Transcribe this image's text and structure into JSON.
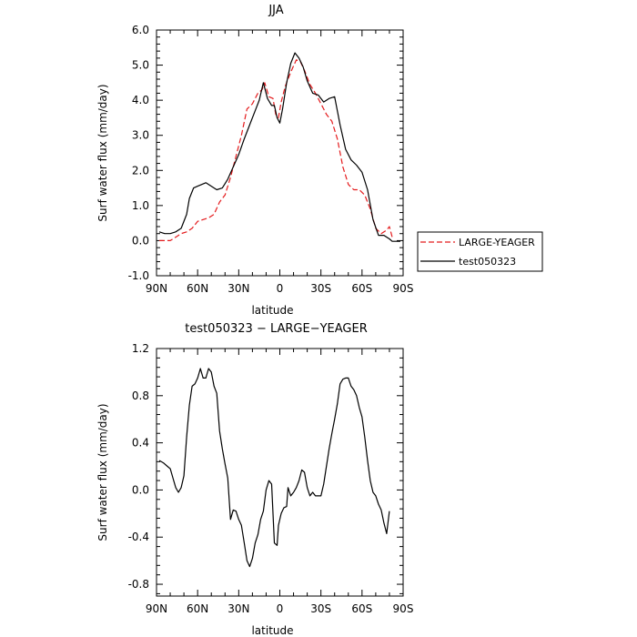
{
  "chart_data": [
    {
      "type": "line",
      "title": "JJA",
      "xlabel": "latitude",
      "ylabel": "Surf water flux (mm/day)",
      "xlim": [
        90,
        -90
      ],
      "ylim": [
        -1.0,
        6.0
      ],
      "xticks": [
        90,
        60,
        30,
        0,
        -30,
        -60,
        -90
      ],
      "xtick_labels": [
        "90N",
        "60N",
        "30N",
        "0",
        "30S",
        "60S",
        "90S"
      ],
      "yticks": [
        -1.0,
        0.0,
        1.0,
        2.0,
        3.0,
        4.0,
        5.0,
        6.0
      ],
      "ytick_labels": [
        "-1.0",
        "0.0",
        "1.0",
        "2.0",
        "3.0",
        "4.0",
        "5.0",
        "6.0"
      ],
      "legend_position": "right-outside",
      "series": [
        {
          "name": "LARGE-YEAGER",
          "color": "#e41a1c",
          "dash": "dashed",
          "points": [
            [
              88,
              0.0
            ],
            [
              84,
              0.0
            ],
            [
              80,
              0.0
            ],
            [
              76,
              0.1
            ],
            [
              72,
              0.2
            ],
            [
              68,
              0.25
            ],
            [
              64,
              0.35
            ],
            [
              60,
              0.55
            ],
            [
              56,
              0.6
            ],
            [
              52,
              0.65
            ],
            [
              48,
              0.75
            ],
            [
              44,
              1.1
            ],
            [
              40,
              1.3
            ],
            [
              36,
              1.8
            ],
            [
              32,
              2.4
            ],
            [
              28,
              3.0
            ],
            [
              24,
              3.75
            ],
            [
              20,
              3.9
            ],
            [
              16,
              4.2
            ],
            [
              13,
              4.3
            ],
            [
              11,
              4.5
            ],
            [
              8,
              4.1
            ],
            [
              5,
              4.05
            ],
            [
              3,
              3.6
            ],
            [
              1,
              3.5
            ],
            [
              -1,
              3.95
            ],
            [
              -4,
              4.4
            ],
            [
              -8,
              4.8
            ],
            [
              -12,
              5.15
            ],
            [
              -15,
              5.1
            ],
            [
              -18,
              4.85
            ],
            [
              -22,
              4.45
            ],
            [
              -26,
              4.2
            ],
            [
              -30,
              3.9
            ],
            [
              -34,
              3.6
            ],
            [
              -38,
              3.4
            ],
            [
              -42,
              2.9
            ],
            [
              -46,
              2.1
            ],
            [
              -50,
              1.6
            ],
            [
              -54,
              1.45
            ],
            [
              -58,
              1.45
            ],
            [
              -62,
              1.3
            ],
            [
              -66,
              0.9
            ],
            [
              -70,
              0.35
            ],
            [
              -74,
              0.2
            ],
            [
              -78,
              0.3
            ],
            [
              -80,
              0.4
            ],
            [
              -82,
              0.1
            ]
          ]
        },
        {
          "name": "test050323",
          "color": "#000000",
          "dash": "solid",
          "points": [
            [
              88,
              0.25
            ],
            [
              84,
              0.2
            ],
            [
              80,
              0.2
            ],
            [
              76,
              0.25
            ],
            [
              72,
              0.35
            ],
            [
              68,
              0.75
            ],
            [
              66,
              1.2
            ],
            [
              63,
              1.5
            ],
            [
              60,
              1.55
            ],
            [
              57,
              1.6
            ],
            [
              54,
              1.65
            ],
            [
              50,
              1.55
            ],
            [
              46,
              1.45
            ],
            [
              42,
              1.5
            ],
            [
              38,
              1.75
            ],
            [
              34,
              2.1
            ],
            [
              30,
              2.45
            ],
            [
              26,
              2.9
            ],
            [
              22,
              3.3
            ],
            [
              18,
              3.7
            ],
            [
              15,
              4.0
            ],
            [
              12,
              4.5
            ],
            [
              9,
              4.05
            ],
            [
              6,
              3.85
            ],
            [
              4,
              3.85
            ],
            [
              2,
              3.5
            ],
            [
              0,
              3.35
            ],
            [
              -2,
              3.75
            ],
            [
              -5,
              4.5
            ],
            [
              -8,
              5.05
            ],
            [
              -11,
              5.35
            ],
            [
              -14,
              5.2
            ],
            [
              -17,
              4.95
            ],
            [
              -20,
              4.55
            ],
            [
              -24,
              4.2
            ],
            [
              -28,
              4.15
            ],
            [
              -32,
              3.95
            ],
            [
              -36,
              4.05
            ],
            [
              -40,
              4.1
            ],
            [
              -44,
              3.3
            ],
            [
              -48,
              2.6
            ],
            [
              -52,
              2.3
            ],
            [
              -56,
              2.15
            ],
            [
              -60,
              1.95
            ],
            [
              -64,
              1.45
            ],
            [
              -68,
              0.6
            ],
            [
              -72,
              0.15
            ],
            [
              -76,
              0.15
            ],
            [
              -80,
              0.05
            ],
            [
              -82,
              -0.02
            ],
            [
              -86,
              -0.02
            ],
            [
              -88,
              -0.02
            ]
          ]
        }
      ]
    },
    {
      "type": "line",
      "title": "test050323 − LARGE−YEAGER",
      "xlabel": "latitude",
      "ylabel": "Surf water flux (mm/day)",
      "xlim": [
        90,
        -90
      ],
      "ylim": [
        -0.9,
        1.2
      ],
      "xticks": [
        90,
        60,
        30,
        0,
        -30,
        -60,
        -90
      ],
      "xtick_labels": [
        "90N",
        "60N",
        "30N",
        "0",
        "30S",
        "60S",
        "90S"
      ],
      "yticks": [
        -0.8,
        -0.4,
        0.0,
        0.4,
        0.8,
        1.2
      ],
      "ytick_labels": [
        "-0.8",
        "-0.4",
        "0.0",
        "0.4",
        "0.8",
        "1.2"
      ],
      "series": [
        {
          "color": "#000000",
          "dash": "solid",
          "points": [
            [
              88,
              0.25
            ],
            [
              85,
              0.23
            ],
            [
              82,
              0.2
            ],
            [
              80,
              0.18
            ],
            [
              78,
              0.1
            ],
            [
              76,
              0.02
            ],
            [
              74,
              -0.02
            ],
            [
              72,
              0.02
            ],
            [
              70,
              0.12
            ],
            [
              68,
              0.45
            ],
            [
              66,
              0.72
            ],
            [
              64,
              0.88
            ],
            [
              62,
              0.9
            ],
            [
              60,
              0.95
            ],
            [
              58,
              1.03
            ],
            [
              56,
              0.95
            ],
            [
              54,
              0.95
            ],
            [
              52,
              1.03
            ],
            [
              50,
              1.0
            ],
            [
              48,
              0.88
            ],
            [
              46,
              0.82
            ],
            [
              44,
              0.5
            ],
            [
              42,
              0.35
            ],
            [
              40,
              0.22
            ],
            [
              38,
              0.1
            ],
            [
              36,
              -0.25
            ],
            [
              34,
              -0.17
            ],
            [
              32,
              -0.18
            ],
            [
              30,
              -0.25
            ],
            [
              28,
              -0.3
            ],
            [
              26,
              -0.45
            ],
            [
              24,
              -0.6
            ],
            [
              22,
              -0.65
            ],
            [
              20,
              -0.58
            ],
            [
              18,
              -0.45
            ],
            [
              16,
              -0.38
            ],
            [
              14,
              -0.25
            ],
            [
              12,
              -0.18
            ],
            [
              10,
              0.0
            ],
            [
              8,
              0.08
            ],
            [
              6,
              0.05
            ],
            [
              4,
              -0.45
            ],
            [
              2,
              -0.47
            ],
            [
              1,
              -0.3
            ],
            [
              -1,
              -0.2
            ],
            [
              -3,
              -0.15
            ],
            [
              -5,
              -0.14
            ],
            [
              -6,
              0.02
            ],
            [
              -8,
              -0.05
            ],
            [
              -10,
              -0.02
            ],
            [
              -12,
              0.02
            ],
            [
              -14,
              0.08
            ],
            [
              -16,
              0.17
            ],
            [
              -18,
              0.15
            ],
            [
              -20,
              0.02
            ],
            [
              -22,
              -0.05
            ],
            [
              -24,
              -0.02
            ],
            [
              -26,
              -0.05
            ],
            [
              -28,
              -0.05
            ],
            [
              -30,
              -0.05
            ],
            [
              -32,
              0.05
            ],
            [
              -34,
              0.2
            ],
            [
              -36,
              0.35
            ],
            [
              -38,
              0.48
            ],
            [
              -40,
              0.6
            ],
            [
              -42,
              0.73
            ],
            [
              -44,
              0.9
            ],
            [
              -46,
              0.94
            ],
            [
              -48,
              0.95
            ],
            [
              -50,
              0.95
            ],
            [
              -52,
              0.88
            ],
            [
              -54,
              0.85
            ],
            [
              -56,
              0.8
            ],
            [
              -58,
              0.7
            ],
            [
              -60,
              0.62
            ],
            [
              -62,
              0.45
            ],
            [
              -64,
              0.25
            ],
            [
              -66,
              0.08
            ],
            [
              -68,
              -0.02
            ],
            [
              -70,
              -0.05
            ],
            [
              -72,
              -0.12
            ],
            [
              -74,
              -0.17
            ],
            [
              -76,
              -0.28
            ],
            [
              -78,
              -0.37
            ],
            [
              -80,
              -0.18
            ]
          ]
        }
      ]
    }
  ]
}
